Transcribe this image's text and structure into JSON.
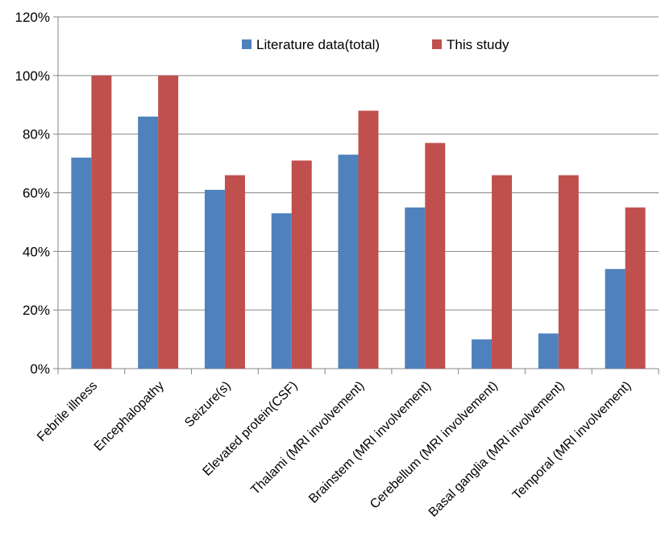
{
  "chart_data": {
    "type": "bar",
    "title": "",
    "xlabel": "",
    "ylabel": "",
    "ylim": [
      0,
      120
    ],
    "yticks": [
      0,
      20,
      40,
      60,
      80,
      100,
      120
    ],
    "ytick_labels": [
      "0%",
      "20%",
      "40%",
      "60%",
      "80%",
      "100%",
      "120%"
    ],
    "grid": true,
    "legend_position": "top-right",
    "categories": [
      "Febrile illness",
      "Encephalopathy",
      "Seizure(s)",
      "Elevated protein(CSF)",
      "Thalami (MRI involvement)",
      "Brainstem (MRI involvement)",
      "Cerebellum (MRI involvement)",
      "Basal ganglia (MRI involvement)",
      "Temporal (MRI involvement)"
    ],
    "series": [
      {
        "name": "Literature data(total)",
        "color": "#4f81bd",
        "values": [
          72,
          86,
          61,
          53,
          73,
          55,
          10,
          12,
          34
        ]
      },
      {
        "name": "This study",
        "color": "#c0504d",
        "values": [
          100,
          100,
          66,
          71,
          88,
          77,
          66,
          66,
          55
        ]
      }
    ]
  }
}
